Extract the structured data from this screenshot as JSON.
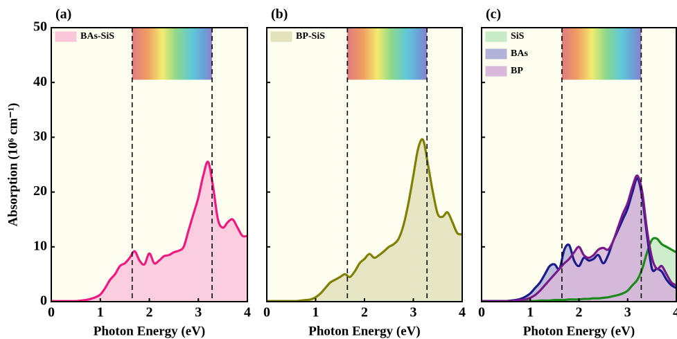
{
  "chart_data": [
    {
      "type": "area",
      "panel_label": "(a)",
      "ylabel": "Absorption (10⁶ cm⁻¹)",
      "xlabel": "Photon Energy (eV)",
      "xlim": [
        0,
        4
      ],
      "xticks": [
        0,
        1,
        2,
        3,
        4
      ],
      "ylim": [
        0,
        50
      ],
      "yticks": [
        0,
        10,
        20,
        30,
        40,
        50
      ],
      "vlines": [
        1.65,
        3.28
      ],
      "band_ylim": [
        40.5,
        50
      ],
      "legend": "upper left",
      "x": [
        0,
        0.1,
        0.2,
        0.3,
        0.4,
        0.5,
        0.6,
        0.7,
        0.8,
        0.9,
        1,
        1.1,
        1.2,
        1.3,
        1.4,
        1.5,
        1.6,
        1.7,
        1.8,
        1.9,
        2,
        2.1,
        2.2,
        2.3,
        2.4,
        2.5,
        2.6,
        2.7,
        2.8,
        2.9,
        3,
        3.1,
        3.2,
        3.3,
        3.4,
        3.5,
        3.6,
        3.7,
        3.8,
        3.9,
        4
      ],
      "series": [
        {
          "name": "BAs-SiS",
          "color": "#ee1a82",
          "fill": "#f9c6da",
          "values": [
            0.1,
            0.1,
            0.1,
            0.1,
            0.1,
            0.1,
            0.2,
            0.3,
            0.5,
            0.8,
            1.3,
            2.5,
            4,
            5,
            6.5,
            7,
            8,
            9.2,
            7.5,
            6.8,
            8.8,
            7,
            7.5,
            8.3,
            8.5,
            9,
            9.3,
            10,
            13,
            16,
            19,
            23,
            25.5,
            21,
            15,
            13.5,
            14.5,
            15,
            13.5,
            12,
            12
          ]
        }
      ]
    },
    {
      "type": "area",
      "panel_label": "(b)",
      "xlabel": "Photon Energy (eV)",
      "xlim": [
        0,
        4
      ],
      "xticks": [
        0,
        1,
        2,
        3,
        4
      ],
      "ylim": [
        0,
        50
      ],
      "yticks": [
        0,
        10,
        20,
        30,
        40,
        50
      ],
      "vlines": [
        1.65,
        3.28
      ],
      "band_ylim": [
        40.5,
        50
      ],
      "legend": "upper left",
      "x": [
        0,
        0.1,
        0.2,
        0.3,
        0.4,
        0.5,
        0.6,
        0.7,
        0.8,
        0.9,
        1,
        1.1,
        1.2,
        1.3,
        1.4,
        1.5,
        1.6,
        1.7,
        1.8,
        1.9,
        2,
        2.1,
        2.2,
        2.3,
        2.4,
        2.5,
        2.6,
        2.7,
        2.8,
        2.9,
        3,
        3.1,
        3.2,
        3.3,
        3.4,
        3.5,
        3.6,
        3.7,
        3.8,
        3.9,
        4
      ],
      "series": [
        {
          "name": "BP-SiS",
          "color": "#808000",
          "fill": "#e2e2bc",
          "values": [
            0.1,
            0.1,
            0.1,
            0.1,
            0.1,
            0.1,
            0.1,
            0.2,
            0.3,
            0.4,
            0.8,
            1.5,
            2.5,
            3.5,
            4,
            4.5,
            5,
            4.5,
            5.5,
            7,
            7.8,
            8.7,
            8,
            8.5,
            9.2,
            10,
            10.5,
            11.5,
            14,
            18,
            23,
            28,
            29.5,
            25,
            20,
            16,
            15.5,
            16.3,
            14.5,
            12.5,
            12.3
          ]
        }
      ]
    },
    {
      "type": "area",
      "panel_label": "(c)",
      "xlabel": "Photon Energy (eV)",
      "xlim": [
        0,
        4
      ],
      "xticks": [
        0,
        1,
        2,
        3,
        4
      ],
      "ylim": [
        0,
        50
      ],
      "yticks": [
        0,
        10,
        20,
        30,
        40,
        50
      ],
      "vlines": [
        1.65,
        3.28
      ],
      "band_ylim": [
        40.5,
        50
      ],
      "legend": "upper left",
      "x": [
        0,
        0.1,
        0.2,
        0.3,
        0.4,
        0.5,
        0.6,
        0.7,
        0.8,
        0.9,
        1,
        1.1,
        1.2,
        1.3,
        1.4,
        1.5,
        1.6,
        1.7,
        1.8,
        1.9,
        2,
        2.1,
        2.2,
        2.3,
        2.4,
        2.5,
        2.6,
        2.7,
        2.8,
        2.9,
        3,
        3.1,
        3.2,
        3.3,
        3.4,
        3.5,
        3.6,
        3.7,
        3.8,
        3.9,
        4
      ],
      "series": [
        {
          "name": "SiS",
          "color": "#1a8a1a",
          "fill": "#c6eac6",
          "values": [
            0.1,
            0.1,
            0.1,
            0.1,
            0.1,
            0.1,
            0.1,
            0.1,
            0.1,
            0.1,
            0.1,
            0.1,
            0.2,
            0.2,
            0.2,
            0.3,
            0.3,
            0.3,
            0.4,
            0.4,
            0.4,
            0.5,
            0.5,
            0.6,
            0.6,
            0.7,
            0.8,
            1,
            1.2,
            1.5,
            2,
            3,
            4,
            6,
            9,
            11.3,
            11.5,
            10.5,
            10,
            9.5,
            9
          ]
        },
        {
          "name": "BAs",
          "color": "#1a1a8c",
          "fill": "#b2b2d8",
          "values": [
            0.1,
            0.1,
            0.1,
            0.1,
            0.1,
            0.1,
            0.2,
            0.3,
            0.5,
            0.9,
            1.5,
            2.5,
            3.5,
            5,
            6.5,
            6.8,
            6,
            9.5,
            10.3,
            7.5,
            6.5,
            8,
            7.5,
            7.8,
            8.5,
            7,
            8.5,
            11,
            13,
            15,
            17,
            20,
            22.5,
            19,
            12,
            6,
            6,
            5.5,
            4,
            3,
            2.5
          ]
        },
        {
          "name": "BP",
          "color": "#7a1a8a",
          "fill": "#d9b9d9",
          "values": [
            0.1,
            0.1,
            0.1,
            0.1,
            0.1,
            0.1,
            0.1,
            0.2,
            0.3,
            0.4,
            0.7,
            1.2,
            2,
            3,
            4,
            5,
            6,
            7,
            7.8,
            9,
            10,
            8.5,
            8,
            8.5,
            9.5,
            9.8,
            9.5,
            11,
            13.5,
            16,
            18,
            21,
            23,
            20,
            13,
            8,
            6,
            6.5,
            5,
            3.5,
            3
          ]
        }
      ]
    }
  ]
}
